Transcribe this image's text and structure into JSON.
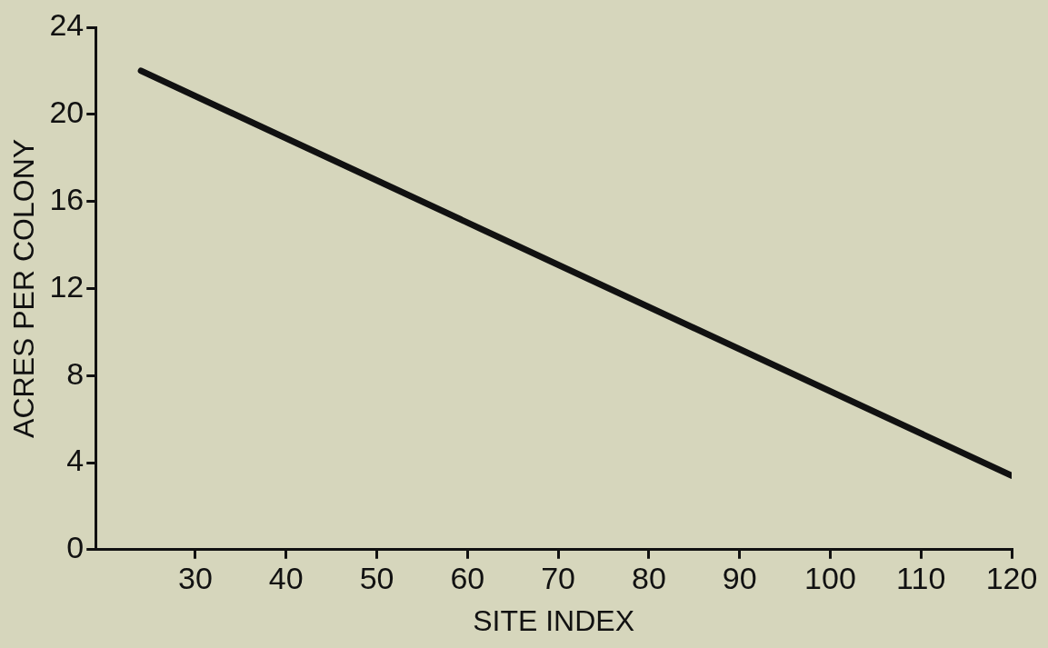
{
  "chart_data": {
    "type": "line",
    "xlabel": "SITE INDEX",
    "ylabel": "ACRES PER COLONY",
    "x": [
      24,
      120
    ],
    "series": [
      {
        "color": "#111111",
        "values": [
          22,
          3.4
        ]
      }
    ],
    "xlim": [
      19,
      120
    ],
    "xticks": [
      30,
      40,
      50,
      60,
      70,
      80,
      90,
      100,
      110,
      120
    ],
    "ylim": [
      0,
      24
    ],
    "yticks": [
      0,
      4,
      8,
      12,
      16,
      20,
      24
    ],
    "grid": false,
    "legend": false,
    "marker": "none",
    "line_style": "solid"
  }
}
